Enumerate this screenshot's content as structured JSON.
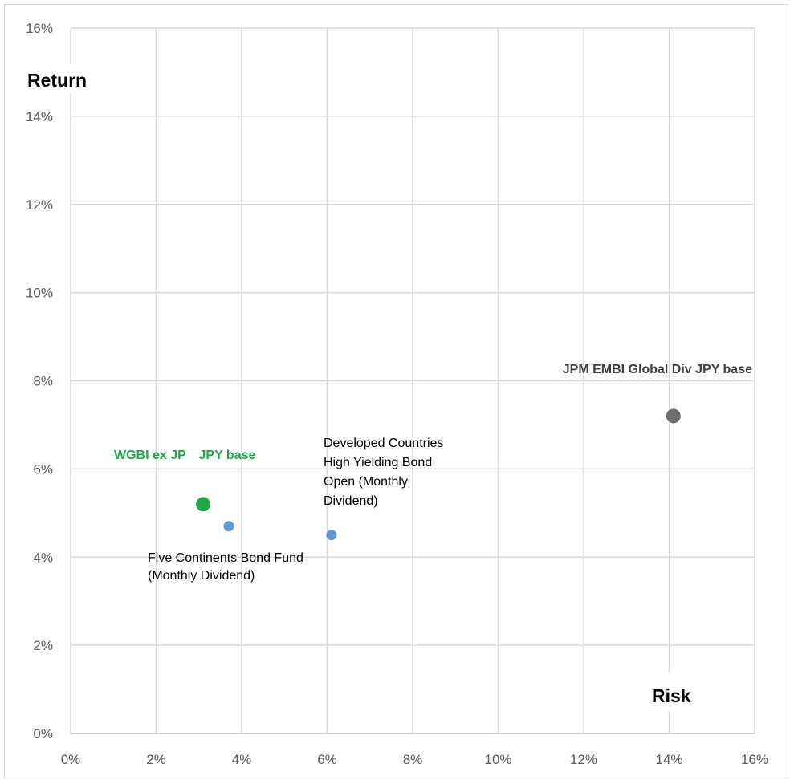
{
  "chart_data": {
    "type": "scatter",
    "xlabel": "Risk",
    "ylabel": "Return",
    "xlim": [
      0,
      16
    ],
    "ylim": [
      0,
      16
    ],
    "x_ticks": [
      "0%",
      "2%",
      "4%",
      "6%",
      "8%",
      "10%",
      "12%",
      "14%",
      "16%"
    ],
    "y_ticks": [
      "0%",
      "2%",
      "4%",
      "6%",
      "8%",
      "10%",
      "12%",
      "14%",
      "16%"
    ],
    "grid": true,
    "legend": "none",
    "points": [
      {
        "name": "WGBI ex JP JPY base",
        "label_lines": [
          "WGBI ex JP　JPY base"
        ],
        "x": 3.1,
        "y": 5.2,
        "color": "#1aaa4a",
        "label_color": "#1aaa4a",
        "size": "large",
        "label_bold": true
      },
      {
        "name": "Five Continents Bond Fund (Monthly Dividend)",
        "label_lines": [
          "Five Continents Bond Fund",
          "(Monthly Dividend)"
        ],
        "x": 3.7,
        "y": 4.7,
        "color": "#5b9bd5",
        "label_color": "#000000",
        "size": "small",
        "label_bold": false
      },
      {
        "name": "Developed Countries High Yielding Bond Open (Monthly Dividend)",
        "label_lines": [
          "Developed Countries",
          "High Yielding Bond",
          "Open (Monthly",
          "Dividend)"
        ],
        "x": 6.1,
        "y": 4.5,
        "color": "#5b9bd5",
        "label_color": "#000000",
        "size": "small",
        "label_bold": false
      },
      {
        "name": "JPM EMBI Global Div JPY base",
        "label_lines": [
          "JPM EMBI Global Div JPY base"
        ],
        "x": 14.1,
        "y": 7.2,
        "color": "#6e6e6e",
        "label_color": "#404040",
        "size": "large",
        "label_bold": true
      }
    ]
  }
}
